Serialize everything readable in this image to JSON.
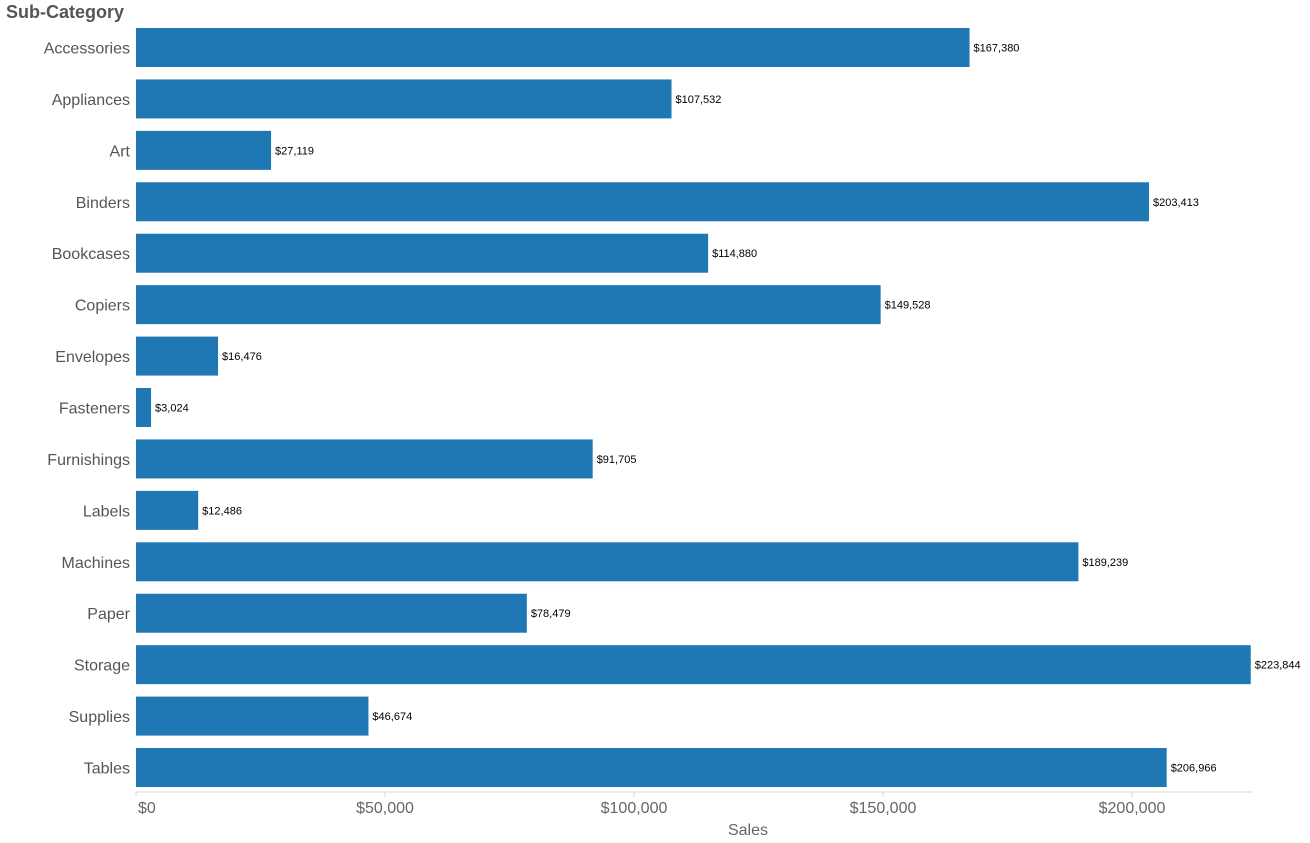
{
  "chart_data": {
    "type": "bar",
    "orientation": "horizontal",
    "row_header": "Sub-Category",
    "xlabel": "Sales",
    "categories": [
      "Accessories",
      "Appliances",
      "Art",
      "Binders",
      "Bookcases",
      "Copiers",
      "Envelopes",
      "Fasteners",
      "Furnishings",
      "Labels",
      "Machines",
      "Paper",
      "Storage",
      "Supplies",
      "Tables"
    ],
    "values": [
      167380,
      107532,
      27119,
      203413,
      114880,
      149528,
      16476,
      3024,
      91705,
      12486,
      189239,
      78479,
      223844,
      46674,
      206966
    ],
    "data_labels": [
      "$167,380",
      "$107,532",
      "$27,119",
      "$203,413",
      "$114,880",
      "$149,528",
      "$16,476",
      "$3,024",
      "$91,705",
      "$12,486",
      "$189,239",
      "$78,479",
      "$223,844",
      "$46,674",
      "$206,966"
    ],
    "xticks": [
      0,
      50000,
      100000,
      150000,
      200000
    ],
    "xtick_labels": [
      "$0",
      "$50,000",
      "$100,000",
      "$150,000",
      "$200,000"
    ],
    "xlim": [
      0,
      223844
    ],
    "grid": false,
    "legend": "none",
    "bar_color": "#1f77b4"
  }
}
